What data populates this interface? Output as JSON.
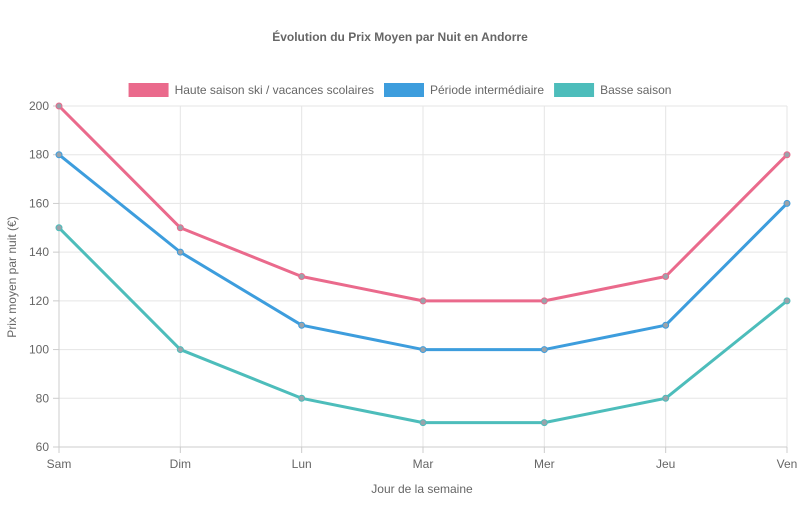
{
  "chart_data": {
    "type": "line",
    "title": "Évolution du Prix Moyen par Nuit en Andorre",
    "xlabel": "Jour de la semaine",
    "ylabel": "Prix moyen par nuit (€)",
    "categories": [
      "Sam",
      "Dim",
      "Lun",
      "Mar",
      "Mer",
      "Jeu",
      "Ven"
    ],
    "ylim": [
      60,
      200
    ],
    "yticks": [
      60,
      80,
      100,
      120,
      140,
      160,
      180,
      200
    ],
    "grid": true,
    "legend_position": "top",
    "series": [
      {
        "name": "Haute saison ski / vacances scolaires",
        "color": "#ea6a8c",
        "values": [
          200,
          150,
          130,
          120,
          120,
          130,
          180
        ]
      },
      {
        "name": "Période intermédiaire",
        "color": "#3d9ddd",
        "values": [
          180,
          140,
          110,
          100,
          100,
          110,
          160
        ]
      },
      {
        "name": "Basse saison",
        "color": "#4dbdbb",
        "values": [
          150,
          100,
          80,
          70,
          70,
          80,
          120
        ]
      }
    ]
  }
}
